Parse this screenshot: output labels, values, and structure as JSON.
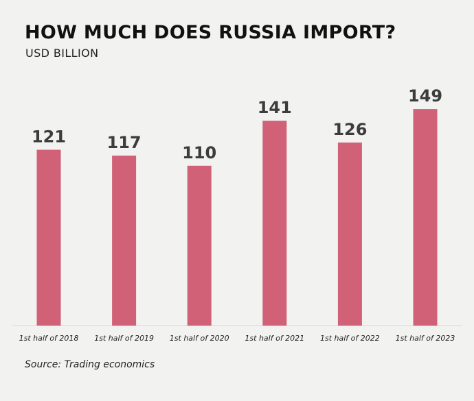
{
  "chart_data": {
    "type": "bar",
    "title": "HOW MUCH DOES RUSSIA IMPORT?",
    "subtitle": "USD BILLION",
    "categories": [
      "1st half of 2018",
      "1st half of 2019",
      "1st half of 2020",
      "1st half of 2021",
      "1st half of 2022",
      "1st half of 2023"
    ],
    "values": [
      121,
      117,
      110,
      141,
      126,
      149
    ],
    "ylim": [
      0,
      160
    ],
    "grid": false,
    "legend": "none",
    "colors": {
      "bar": "#d06177",
      "value_label": "#3c3c3c",
      "tick_label": "#222222",
      "baseline": "#d8d8d8",
      "background": "#f2f2f0"
    }
  },
  "source": "Source: Trading economics"
}
